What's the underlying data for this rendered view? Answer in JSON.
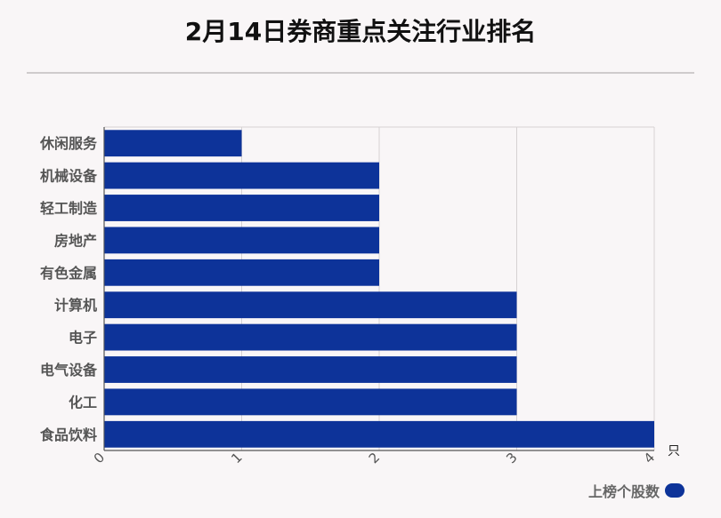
{
  "chart_data": {
    "type": "bar",
    "orientation": "horizontal",
    "title": "2月14日券商重点关注行业排名",
    "categories": [
      "休闲服务",
      "机械设备",
      "轻工制造",
      "房地产",
      "有色金属",
      "计算机",
      "电子",
      "电气设备",
      "化工",
      "食品饮料"
    ],
    "series": [
      {
        "name": "上榜个股数",
        "values": [
          1,
          2,
          2,
          2,
          2,
          3,
          3,
          3,
          3,
          4
        ]
      }
    ],
    "xlabel": "只",
    "ylabel": "",
    "xlim": [
      0,
      4
    ],
    "xticks": [
      "0",
      "1",
      "2",
      "3",
      "4"
    ],
    "grid": true,
    "legend": "bottom-right",
    "colors": {
      "bar": "#0d3399",
      "grid": "#d6d2d3",
      "axis": "#555555"
    }
  }
}
